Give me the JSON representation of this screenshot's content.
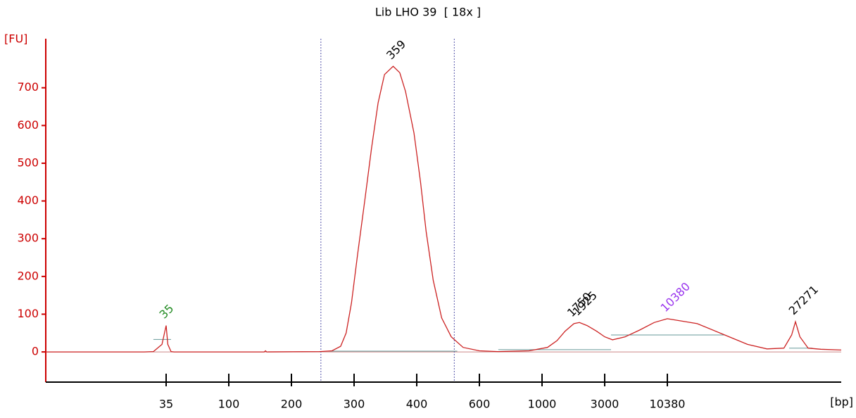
{
  "chart_data": {
    "type": "line",
    "title": "Lib LHO 39  [ 18x ]",
    "y_label": "[FU]",
    "x_label": "[bp]",
    "color": "#cc2222",
    "axis_color": "#cc0000",
    "xscale": "log-between-ticks",
    "xlim": [
      15,
      38500
    ],
    "xticks": [
      35,
      100,
      200,
      300,
      400,
      600,
      1000,
      3000,
      10380
    ],
    "ylim": [
      -80,
      830
    ],
    "yticks": [
      0,
      100,
      200,
      300,
      400,
      500,
      600,
      700
    ],
    "x": [
      15,
      30,
      32,
      34,
      35,
      36,
      38,
      40,
      100,
      148,
      150,
      152,
      240,
      260,
      275,
      285,
      295,
      305,
      315,
      325,
      335,
      345,
      359,
      370,
      380,
      395,
      410,
      425,
      445,
      470,
      500,
      540,
      600,
      700,
      900,
      1100,
      1300,
      1500,
      1750,
      1925,
      2200,
      2600,
      3000,
      3500,
      4500,
      6000,
      8000,
      10380,
      13000,
      16000,
      19000,
      22000,
      25000,
      26500,
      27271,
      28200,
      30000,
      33000,
      38500
    ],
    "values": [
      0,
      0,
      1,
      20,
      70,
      20,
      1,
      0,
      0,
      0,
      3,
      0,
      1,
      3,
      15,
      50,
      130,
      260,
      400,
      540,
      660,
      735,
      757,
      740,
      690,
      580,
      450,
      320,
      190,
      90,
      40,
      12,
      3,
      1,
      3,
      12,
      30,
      55,
      75,
      78,
      70,
      55,
      40,
      32,
      40,
      58,
      78,
      88,
      75,
      45,
      20,
      8,
      10,
      45,
      80,
      40,
      10,
      7,
      5
    ],
    "peaks": [
      {
        "x": 35,
        "y": 70,
        "color": "#228b22"
      },
      {
        "x": 359,
        "y": 757,
        "color": "#000000"
      },
      {
        "x": 1750,
        "y": 75,
        "color": "#000000"
      },
      {
        "x": 1925,
        "y": 78,
        "color": "#000000"
      },
      {
        "x": 10380,
        "y": 88,
        "color": "#9933ee"
      },
      {
        "x": 27271,
        "y": 80,
        "color": "#000000"
      }
    ],
    "region": [
      242,
      510
    ],
    "baselines": [
      {
        "x": [
          32,
          38
        ],
        "y": [
          33,
          33
        ]
      },
      {
        "x": [
          250,
          520
        ],
        "y": [
          2,
          2
        ]
      },
      {
        "x": [
          700,
          3400
        ],
        "y": [
          6,
          6
        ]
      },
      {
        "x": [
          3400,
          16000
        ],
        "y": [
          45,
          45
        ]
      },
      {
        "x": [
          26000,
          31000
        ],
        "y": [
          10,
          10
        ]
      }
    ]
  }
}
